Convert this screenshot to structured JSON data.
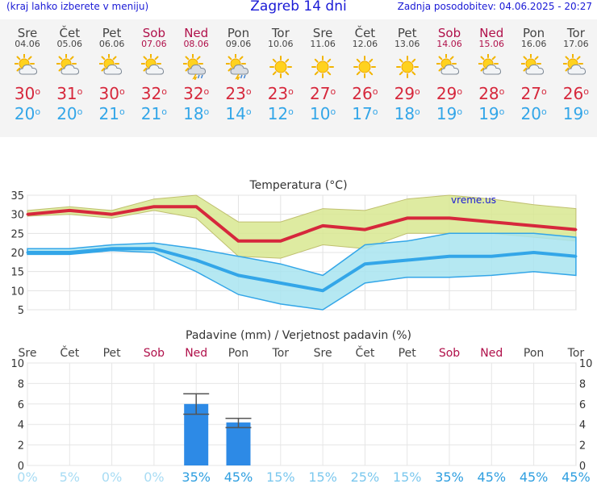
{
  "header": {
    "left_note": "(kraj lahko izberete v meniju)",
    "title": "Zagreb 14 dni",
    "updated": "Zadnja posodobitev: 04.06.2025 - 20:27"
  },
  "colors": {
    "weekend": "#b0104a",
    "tmax": "#d6283c",
    "tmin": "#33a6e8",
    "precip_bar": "#2d8ae6",
    "tmax_band": "#d8e890",
    "tmin_band": "#a8e4f0"
  },
  "days": [
    {
      "name": "Sre",
      "date": "04.06",
      "weekend": false,
      "icon": "sun-cloud-icon",
      "tmax": 30,
      "tmin": 20,
      "prob": "0%"
    },
    {
      "name": "Čet",
      "date": "05.06",
      "weekend": false,
      "icon": "sun-cloud-icon",
      "tmax": 31,
      "tmin": 20,
      "prob": "5%"
    },
    {
      "name": "Pet",
      "date": "06.06",
      "weekend": false,
      "icon": "sun-cloud-icon",
      "tmax": 30,
      "tmin": 21,
      "prob": "0%"
    },
    {
      "name": "Sob",
      "date": "07.06",
      "weekend": true,
      "icon": "sun-cloud-icon",
      "tmax": 32,
      "tmin": 21,
      "prob": "0%"
    },
    {
      "name": "Ned",
      "date": "08.06",
      "weekend": true,
      "icon": "thunderstorm-icon",
      "tmax": 32,
      "tmin": 18,
      "prob": "35%"
    },
    {
      "name": "Pon",
      "date": "09.06",
      "weekend": false,
      "icon": "thunderstorm-icon",
      "tmax": 23,
      "tmin": 14,
      "prob": "45%"
    },
    {
      "name": "Tor",
      "date": "10.06",
      "weekend": false,
      "icon": "sun-icon",
      "tmax": 23,
      "tmin": 12,
      "prob": "15%"
    },
    {
      "name": "Sre",
      "date": "11.06",
      "weekend": false,
      "icon": "sun-icon",
      "tmax": 27,
      "tmin": 10,
      "prob": "15%"
    },
    {
      "name": "Čet",
      "date": "12.06",
      "weekend": false,
      "icon": "sun-icon",
      "tmax": 26,
      "tmin": 17,
      "prob": "25%"
    },
    {
      "name": "Pet",
      "date": "13.06",
      "weekend": false,
      "icon": "sun-icon",
      "tmax": 29,
      "tmin": 18,
      "prob": "15%"
    },
    {
      "name": "Sob",
      "date": "14.06",
      "weekend": true,
      "icon": "sun-cloud-icon",
      "tmax": 29,
      "tmin": 19,
      "prob": "35%"
    },
    {
      "name": "Ned",
      "date": "15.06",
      "weekend": true,
      "icon": "sun-cloud-icon",
      "tmax": 28,
      "tmin": 19,
      "prob": "45%"
    },
    {
      "name": "Pon",
      "date": "16.06",
      "weekend": false,
      "icon": "sun-cloud-icon",
      "tmax": 27,
      "tmin": 20,
      "prob": "45%"
    },
    {
      "name": "Tor",
      "date": "17.06",
      "weekend": false,
      "icon": "sun-cloud-icon",
      "tmax": 26,
      "tmin": 19,
      "prob": "45%"
    }
  ],
  "chart_data": [
    {
      "type": "area",
      "title": "Temperatura (°C)",
      "watermark": "vreme.us",
      "ylim": [
        5,
        35
      ],
      "yticks": [
        5,
        10,
        15,
        20,
        25,
        30,
        35
      ],
      "grid": true,
      "x": [
        "Sre",
        "Čet",
        "Pet",
        "Sob",
        "Ned",
        "Pon",
        "Tor",
        "Sre",
        "Čet",
        "Pet",
        "Sob",
        "Ned",
        "Pon",
        "Tor"
      ],
      "series": [
        {
          "values": [
            30,
            31,
            30,
            32,
            32,
            23,
            23,
            27,
            26,
            29,
            29,
            28,
            27,
            26
          ]
        },
        {
          "values": [
            20,
            20,
            21,
            21,
            18,
            14,
            12,
            10,
            17,
            18,
            19,
            19,
            20,
            19
          ]
        }
      ],
      "tmax_band_upper": [
        31,
        32,
        31,
        34,
        35,
        28,
        28,
        31.5,
        31,
        34,
        35,
        34,
        32.5,
        31.5
      ],
      "tmax_band_lower": [
        29.5,
        30,
        29,
        31,
        29,
        19,
        18.5,
        22,
        21,
        25,
        25,
        25,
        24,
        23
      ],
      "tmin_band_upper": [
        21,
        21,
        22,
        22.5,
        21,
        19,
        17,
        14,
        22,
        23,
        25,
        25,
        25,
        24
      ],
      "tmin_band_lower": [
        19.5,
        19.5,
        20.5,
        20,
        15,
        9,
        6.5,
        5,
        12,
        13.5,
        13.5,
        14,
        15,
        14
      ]
    },
    {
      "type": "bar",
      "title": "Padavine (mm) / Verjetnost padavin (%)",
      "ylim": [
        0,
        10
      ],
      "yticks": [
        0,
        2,
        4,
        6,
        8,
        10
      ],
      "grid": true,
      "categories": [
        "Sre",
        "Čet",
        "Pet",
        "Sob",
        "Ned",
        "Pon",
        "Tor",
        "Sre",
        "Čet",
        "Pet",
        "Sob",
        "Ned",
        "Pon",
        "Tor"
      ],
      "values": [
        0,
        0,
        0,
        0,
        6,
        4.2,
        0,
        0,
        0,
        0,
        0,
        0,
        0,
        0
      ],
      "error_high": [
        0,
        0,
        0,
        0,
        7,
        4.6,
        0,
        0,
        0,
        0,
        0,
        0,
        0,
        0
      ],
      "error_low": [
        0,
        0,
        0,
        0,
        5,
        3.7,
        0,
        0,
        0,
        0,
        0,
        0,
        0,
        0
      ],
      "probabilities": [
        "0%",
        "5%",
        "0%",
        "0%",
        "35%",
        "45%",
        "15%",
        "15%",
        "25%",
        "15%",
        "35%",
        "45%",
        "45%",
        "45%"
      ]
    }
  ]
}
